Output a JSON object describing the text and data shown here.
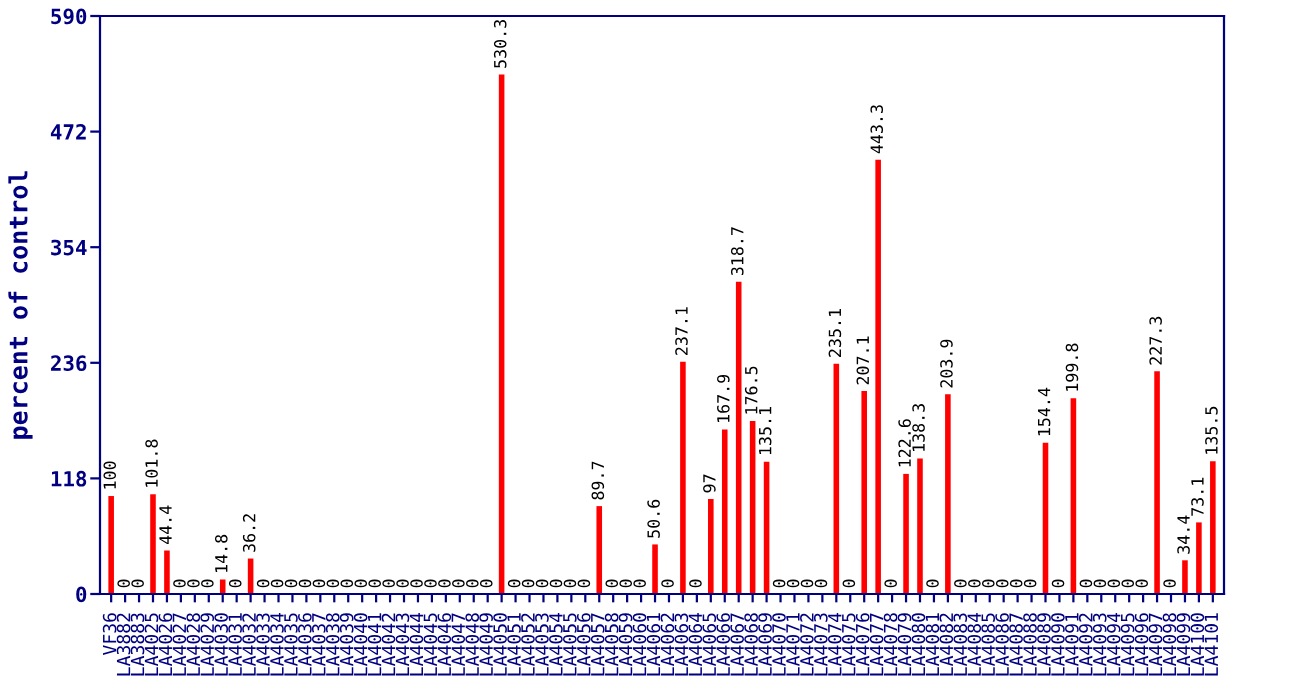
{
  "chart_data": {
    "type": "bar",
    "ylabel": "percent of control",
    "categories": [
      "VF36",
      "LA3882",
      "LA3883",
      "LA4025",
      "LA4026",
      "LA4027",
      "LA4028",
      "LA4029",
      "LA4030",
      "LA4031",
      "LA4032",
      "LA4033",
      "LA4034",
      "LA4035",
      "LA4036",
      "LA4037",
      "LA4038",
      "LA4039",
      "LA4040",
      "LA4041",
      "LA4042",
      "LA4043",
      "LA4044",
      "LA4045",
      "LA4046",
      "LA4047",
      "LA4048",
      "LA4049",
      "LA4050",
      "LA4051",
      "LA4052",
      "LA4053",
      "LA4054",
      "LA4055",
      "LA4056",
      "LA4057",
      "LA4058",
      "LA4059",
      "LA4060",
      "LA4061",
      "LA4062",
      "LA4063",
      "LA4064",
      "LA4065",
      "LA4066",
      "LA4067",
      "LA4068",
      "LA4069",
      "LA4070",
      "LA4071",
      "LA4072",
      "LA4073",
      "LA4074",
      "LA4075",
      "LA4076",
      "LA4077",
      "LA4078",
      "LA4079",
      "LA4080",
      "LA4081",
      "LA4082",
      "LA4083",
      "LA4084",
      "LA4085",
      "LA4086",
      "LA4087",
      "LA4088",
      "LA4089",
      "LA4090",
      "LA4091",
      "LA4092",
      "LA4093",
      "LA4094",
      "LA4095",
      "LA4096",
      "LA4097",
      "LA4098",
      "LA4099",
      "LA4100",
      "LA4101"
    ],
    "values": [
      100,
      0,
      0,
      101.8,
      44.4,
      0,
      0,
      0,
      14.8,
      0,
      36.2,
      0,
      0,
      0,
      0,
      0,
      0,
      0,
      0,
      0,
      0,
      0,
      0,
      0,
      0,
      0,
      0,
      0,
      530.3,
      0,
      0,
      0,
      0,
      0,
      0,
      89.7,
      0,
      0,
      0,
      50.6,
      0,
      237.1,
      0,
      97,
      167.9,
      318.7,
      176.5,
      135.1,
      0,
      0,
      0,
      0,
      235.1,
      0,
      207.1,
      443.3,
      0,
      122.6,
      138.3,
      0,
      203.9,
      0,
      0,
      0,
      0,
      0,
      0,
      154.4,
      0,
      199.8,
      0,
      0,
      0,
      0,
      0,
      227.3,
      0,
      34.4,
      73.1,
      135.5
    ],
    "color": "#ff0000",
    "data_labels": true,
    "ylim": [
      0,
      590
    ],
    "yticks": [
      0,
      118,
      236,
      354,
      472,
      590
    ],
    "grid": false,
    "legend": false
  }
}
